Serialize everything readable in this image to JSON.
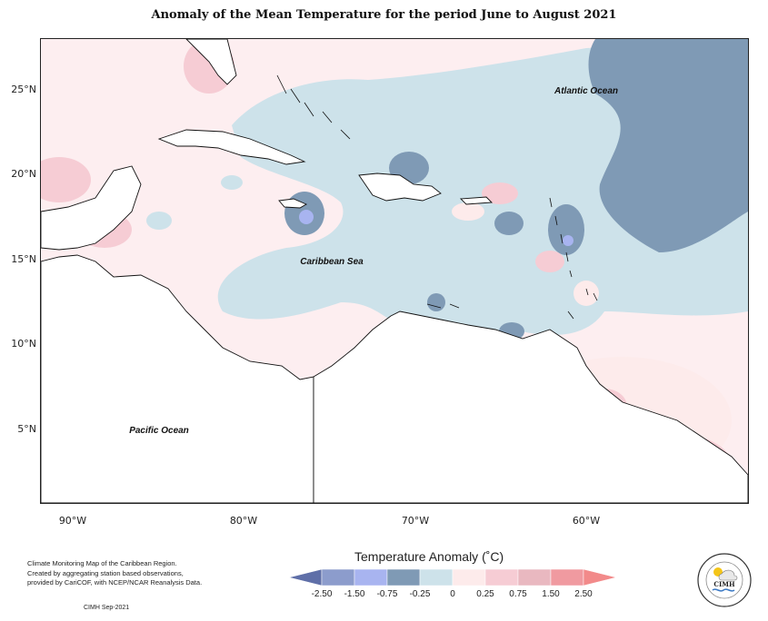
{
  "title": "Anomaly of the Mean Temperature for the period June to August 2021",
  "map": {
    "region_labels": {
      "atlantic": "Atlantic Ocean",
      "caribbean": "Caribbean Sea",
      "pacific": "Pacific Ocean"
    },
    "lat_ticks": [
      "25°N",
      "20°N",
      "15°N",
      "10°N",
      "5°N"
    ],
    "lon_ticks": [
      "90°W",
      "80°W",
      "70°W",
      "60°W"
    ]
  },
  "legend": {
    "title": "Temperature Anomaly (˚C)",
    "ticks": [
      "-2.50",
      "-1.50",
      "-0.75",
      "-0.25",
      "0",
      "0.25",
      "0.75",
      "1.50",
      "2.50"
    ],
    "colors": [
      "#5f6fa8",
      "#8c9ccc",
      "#a8b4f0",
      "#7f9ab5",
      "#cde2ea",
      "#fdebeb",
      "#f6ccd4",
      "#e9b8c0",
      "#f09aa0",
      "#f28a8a"
    ]
  },
  "credit": {
    "lines": [
      "Climate Monitoring Map of the Caribbean Region.",
      "Created by aggregating station based observations,",
      "provided by CariCOF, with NCEP/NCAR Reanalysis Data."
    ],
    "stamp": "CIMH Sep-2021"
  },
  "logo": {
    "text": "CIMH"
  }
}
